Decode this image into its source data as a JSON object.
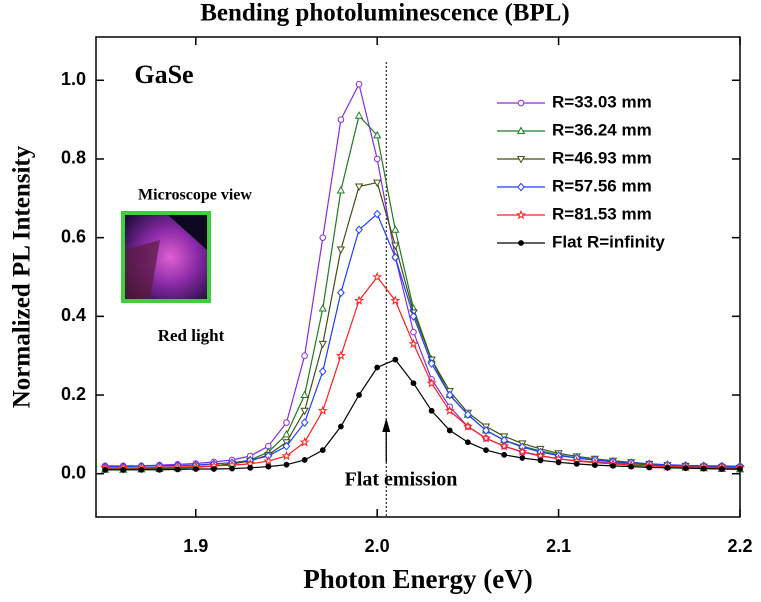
{
  "chart_data": {
    "type": "line",
    "title": "Bending photoluminescence (BPL)",
    "x_label": "Photon Energy (eV)",
    "y_label": "Normalized PL Intensity",
    "annotations": {
      "sample": "GaSe",
      "inset_top": "Microscope view",
      "inset_bottom": "Red light",
      "arrow": "Flat emission"
    },
    "reference_line": {
      "x": 2.005
    },
    "xlim": [
      1.845,
      2.2
    ],
    "xticks": [
      1.9,
      {
        "value": 2,
        "label": "2.0"
      },
      2.1,
      2.2
    ],
    "ylim": [
      -0.11,
      1.11
    ],
    "yticks": [
      {
        "value": 0,
        "label": "0.0"
      },
      0.2,
      0.4,
      0.6,
      0.8,
      {
        "value": 1,
        "label": "1.0"
      }
    ],
    "x": [
      1.85,
      1.86,
      1.87,
      1.88,
      1.89,
      1.9,
      1.91,
      1.92,
      1.93,
      1.94,
      1.95,
      1.96,
      1.97,
      1.98,
      1.99,
      2.0,
      2.01,
      2.02,
      2.03,
      2.04,
      2.05,
      2.06,
      2.07,
      2.08,
      2.09,
      2.1,
      2.11,
      2.12,
      2.13,
      2.14,
      2.15,
      2.16,
      2.17,
      2.18,
      2.19,
      2.2
    ],
    "series": [
      {
        "name": "R=33.03 mm",
        "color": "#8a2be2",
        "marker": "circle",
        "values": [
          0.02,
          0.02,
          0.02,
          0.022,
          0.024,
          0.026,
          0.03,
          0.035,
          0.045,
          0.07,
          0.13,
          0.3,
          0.6,
          0.9,
          0.99,
          0.8,
          0.55,
          0.36,
          0.24,
          0.17,
          0.12,
          0.09,
          0.07,
          0.055,
          0.045,
          0.038,
          0.033,
          0.03,
          0.027,
          0.025,
          0.023,
          0.022,
          0.021,
          0.02,
          0.02,
          0.019
        ]
      },
      {
        "name": "R=36.24 mm",
        "color": "#1e7b1e",
        "marker": "triangle-up",
        "values": [
          0.01,
          0.01,
          0.011,
          0.012,
          0.014,
          0.016,
          0.02,
          0.025,
          0.035,
          0.055,
          0.1,
          0.2,
          0.42,
          0.72,
          0.91,
          0.86,
          0.62,
          0.42,
          0.29,
          0.2,
          0.15,
          0.11,
          0.085,
          0.07,
          0.058,
          0.048,
          0.04,
          0.035,
          0.03,
          0.026,
          0.022,
          0.019,
          0.016,
          0.014,
          0.012,
          0.011
        ]
      },
      {
        "name": "R=46.93 mm",
        "color": "#3d4f12",
        "marker": "triangle-down",
        "values": [
          0.012,
          0.012,
          0.013,
          0.014,
          0.015,
          0.017,
          0.02,
          0.025,
          0.032,
          0.048,
          0.08,
          0.16,
          0.33,
          0.57,
          0.73,
          0.74,
          0.58,
          0.41,
          0.29,
          0.21,
          0.155,
          0.12,
          0.095,
          0.077,
          0.063,
          0.052,
          0.044,
          0.038,
          0.033,
          0.029,
          0.025,
          0.022,
          0.02,
          0.018,
          0.016,
          0.015
        ]
      },
      {
        "name": "R=57.56 mm",
        "color": "#1f3fff",
        "marker": "diamond",
        "values": [
          0.018,
          0.018,
          0.019,
          0.02,
          0.021,
          0.022,
          0.025,
          0.028,
          0.034,
          0.045,
          0.07,
          0.13,
          0.26,
          0.46,
          0.62,
          0.66,
          0.55,
          0.4,
          0.28,
          0.2,
          0.15,
          0.11,
          0.085,
          0.068,
          0.055,
          0.046,
          0.04,
          0.035,
          0.031,
          0.028,
          0.025,
          0.023,
          0.021,
          0.02,
          0.019,
          0.018
        ]
      },
      {
        "name": "R=81.53 mm",
        "color": "#ff2020",
        "marker": "star",
        "values": [
          0.015,
          0.015,
          0.015,
          0.016,
          0.017,
          0.018,
          0.02,
          0.022,
          0.025,
          0.032,
          0.045,
          0.08,
          0.16,
          0.3,
          0.44,
          0.5,
          0.44,
          0.33,
          0.23,
          0.16,
          0.12,
          0.09,
          0.07,
          0.056,
          0.046,
          0.038,
          0.032,
          0.028,
          0.025,
          0.022,
          0.02,
          0.018,
          0.017,
          0.016,
          0.015,
          0.015
        ]
      },
      {
        "name": "Flat R=infinity",
        "color": "#000000",
        "marker": "dot",
        "values": [
          0.01,
          0.01,
          0.01,
          0.01,
          0.011,
          0.012,
          0.012,
          0.013,
          0.015,
          0.018,
          0.023,
          0.035,
          0.06,
          0.12,
          0.2,
          0.27,
          0.29,
          0.23,
          0.16,
          0.11,
          0.08,
          0.06,
          0.048,
          0.04,
          0.034,
          0.029,
          0.025,
          0.022,
          0.02,
          0.018,
          0.016,
          0.015,
          0.014,
          0.013,
          0.012,
          0.012
        ]
      }
    ]
  }
}
